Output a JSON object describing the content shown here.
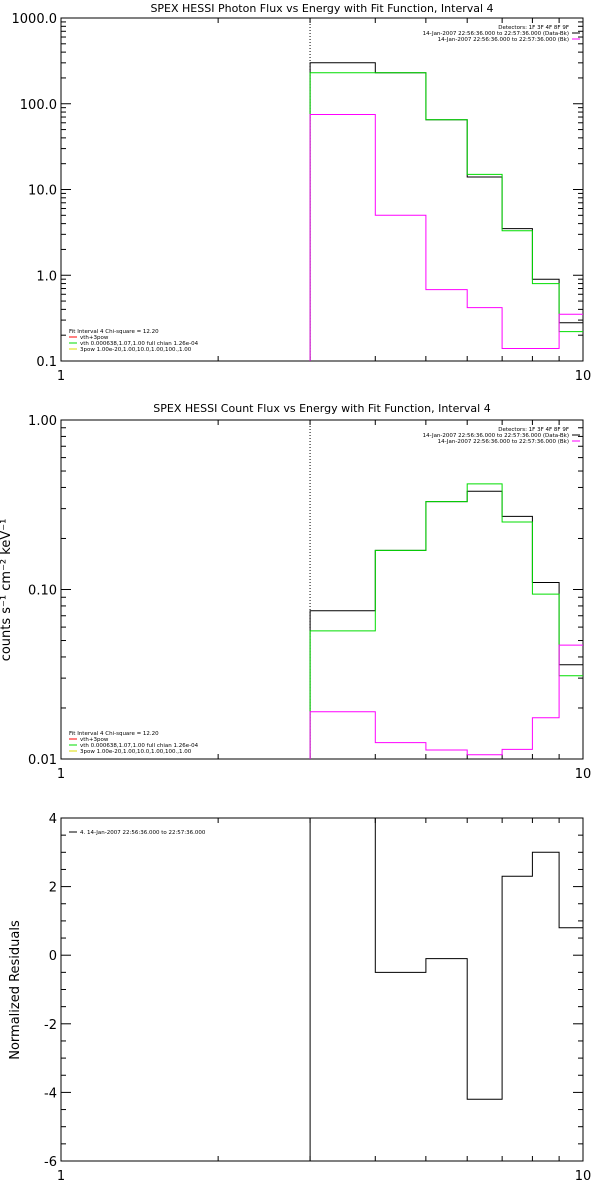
{
  "chart_data": [
    {
      "type": "line",
      "title": "SPEX HESSI Photon Flux vs Energy with Fit Function, Interval 4",
      "xlabel": "",
      "ylabel": "",
      "xscale": "log",
      "yscale": "log",
      "xlim": [
        1,
        10
      ],
      "ylim": [
        0.1,
        1000
      ],
      "x_ticks": [
        "1",
        "10"
      ],
      "y_ticks": [
        "0.1",
        "1.0",
        "10.0",
        "100.0",
        "1000.0"
      ],
      "vline_x": 3,
      "step_edges": [
        3,
        4,
        5,
        6,
        7,
        8,
        9,
        10
      ],
      "series": [
        {
          "name": "14-Jan-2007 22:56:36.000 to 22:57:36.000 (Data-Bk)",
          "color": "#000000",
          "values": [
            300,
            230,
            65,
            14,
            3.5,
            0.9,
            0.28
          ]
        },
        {
          "name": "vth+3pow",
          "color": "#00dd00",
          "values": [
            230,
            230,
            65,
            15,
            3.3,
            0.8,
            0.22
          ]
        },
        {
          "name": "14-Jan-2007 22:56:36.000 to 22:57:36.000 (Bk)",
          "color": "#ff00ff",
          "values": [
            75,
            5,
            0.68,
            0.42,
            0.14,
            0.14,
            0.35
          ]
        }
      ],
      "header_lines": [
        "Detectors: 1F 3F 4F 8F 9F",
        "14-Jan-2007 22:56:36.000 to 22:57:36.000 (Data-Bk)",
        "14-Jan-2007 22:56:36.000 to 22:57:36.000 (Bk)"
      ],
      "legend": {
        "placement": "bottom-left",
        "heading": "Fit Interval 4   Chi-square = 12.20",
        "items": [
          {
            "label": "vth+3pow",
            "color": "#ff0000"
          },
          {
            "label": "vth 0.000638,1.07,1.00  full chian 1.26e-04",
            "color": "#00dd00"
          },
          {
            "label": "3pow 1.00e-20,1.00,10.0,1.00,100.,1.00",
            "color": "#dddd00"
          }
        ]
      }
    },
    {
      "type": "line",
      "title": "SPEX HESSI Count Flux vs Energy with Fit Function, Interval 4",
      "xlabel": "",
      "ylabel": "counts s⁻¹ cm⁻² keV⁻¹",
      "xscale": "log",
      "yscale": "log",
      "xlim": [
        1,
        10
      ],
      "ylim": [
        0.01,
        1
      ],
      "x_ticks": [
        "1",
        "10"
      ],
      "y_ticks": [
        "0.01",
        "0.10",
        "1.00"
      ],
      "vline_x": 3,
      "step_edges": [
        3,
        4,
        5,
        6,
        7,
        8,
        9,
        10
      ],
      "series": [
        {
          "name": "14-Jan-2007 22:56:36.000 to 22:57:36.000 (Data-Bk)",
          "color": "#000000",
          "values": [
            0.075,
            0.17,
            0.33,
            0.38,
            0.27,
            0.11,
            0.036
          ]
        },
        {
          "name": "vth+3pow",
          "color": "#00dd00",
          "values": [
            0.057,
            0.17,
            0.33,
            0.42,
            0.25,
            0.094,
            0.031
          ]
        },
        {
          "name": "14-Jan-2007 22:56:36.000 to 22:57:36.000 (Bk)",
          "color": "#ff00ff",
          "values": [
            0.019,
            0.0125,
            0.0113,
            0.0106,
            0.0114,
            0.0175,
            0.047
          ]
        }
      ],
      "header_lines": [
        "Detectors: 1F 3F 4F 8F 9F",
        "14-Jan-2007 22:56:36.000 to 22:57:36.000 (Data-Bk)",
        "14-Jan-2007 22:56:36.000 to 22:57:36.000 (Bk)"
      ],
      "legend": {
        "placement": "bottom-left",
        "heading": "Fit Interval 4   Chi-square = 12.20",
        "items": [
          {
            "label": "vth+3pow",
            "color": "#ff0000"
          },
          {
            "label": "vth 0.000638,1.07,1.00  full chian 1.26e-04",
            "color": "#00dd00"
          },
          {
            "label": "3pow 1.00e-20,1.00,10.0,1.00,100.,1.00",
            "color": "#dddd00"
          }
        ]
      }
    },
    {
      "type": "line",
      "title": "",
      "xlabel": "",
      "ylabel": "Normalized Residuals",
      "xscale": "log",
      "yscale": "linear",
      "xlim": [
        1,
        10
      ],
      "ylim": [
        -6,
        4
      ],
      "x_ticks": [
        "1",
        "10"
      ],
      "y_ticks": [
        "-6",
        "-4",
        "-2",
        "0",
        "2",
        "4"
      ],
      "step_edges": [
        3,
        4,
        5,
        6,
        7,
        8,
        9,
        10
      ],
      "series": [
        {
          "name": "4. 14-Jan-2007 22:56:36.000 to 22:57:36.000",
          "color": "#000000",
          "values": [
            4,
            -0.5,
            -0.1,
            -4.2,
            2.3,
            3.0,
            0.8
          ]
        }
      ],
      "legend": {
        "placement": "top-left",
        "items": [
          {
            "label": "4. 14-Jan-2007 22:56:36.000 to 22:57:36.000",
            "color": "#000000"
          }
        ]
      }
    }
  ]
}
